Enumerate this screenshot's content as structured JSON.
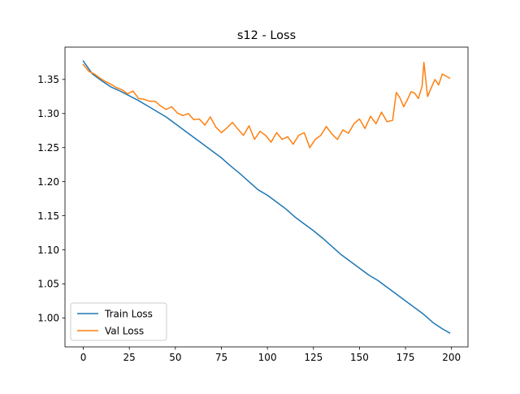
{
  "chart_data": {
    "type": "line",
    "title": "s12 - Loss",
    "xlabel": "",
    "ylabel": "",
    "xlim": [
      -9.95,
      208.95
    ],
    "ylim": [
      0.9575,
      1.3975
    ],
    "x_ticks": [
      0,
      25,
      50,
      75,
      100,
      125,
      150,
      175,
      200
    ],
    "y_ticks": [
      1.0,
      1.05,
      1.1,
      1.15,
      1.2,
      1.25,
      1.3,
      1.35
    ],
    "grid": false,
    "legend_position": "lower left",
    "series": [
      {
        "name": "Train Loss",
        "color": "#1f77b4",
        "x": [
          0,
          5,
          10,
          15,
          20,
          25,
          30,
          35,
          40,
          45,
          50,
          55,
          60,
          65,
          70,
          75,
          80,
          85,
          90,
          95,
          100,
          105,
          110,
          115,
          120,
          125,
          130,
          135,
          140,
          145,
          150,
          155,
          160,
          165,
          170,
          175,
          180,
          185,
          190,
          195,
          199
        ],
        "y": [
          1.377,
          1.358,
          1.348,
          1.339,
          1.333,
          1.326,
          1.319,
          1.311,
          1.303,
          1.295,
          1.285,
          1.275,
          1.265,
          1.255,
          1.245,
          1.235,
          1.223,
          1.212,
          1.2,
          1.188,
          1.18,
          1.17,
          1.16,
          1.148,
          1.138,
          1.128,
          1.117,
          1.105,
          1.093,
          1.083,
          1.073,
          1.063,
          1.055,
          1.045,
          1.035,
          1.025,
          1.015,
          1.005,
          0.993,
          0.984,
          0.978
        ]
      },
      {
        "name": "Val Loss",
        "color": "#ff7f0e",
        "x": [
          0,
          3,
          6,
          9,
          12,
          15,
          18,
          21,
          24,
          27,
          30,
          33,
          36,
          39,
          42,
          45,
          48,
          51,
          54,
          57,
          60,
          63,
          66,
          69,
          72,
          75,
          78,
          81,
          84,
          87,
          90,
          93,
          96,
          99,
          102,
          105,
          108,
          111,
          114,
          117,
          120,
          123,
          126,
          129,
          132,
          135,
          138,
          141,
          144,
          147,
          150,
          153,
          156,
          159,
          162,
          165,
          168,
          170,
          172,
          174,
          176,
          178,
          180,
          182,
          184,
          185,
          187,
          189,
          191,
          193,
          195,
          197,
          199
        ],
        "y": [
          1.372,
          1.362,
          1.358,
          1.352,
          1.347,
          1.343,
          1.338,
          1.335,
          1.329,
          1.333,
          1.322,
          1.321,
          1.318,
          1.318,
          1.311,
          1.306,
          1.31,
          1.301,
          1.297,
          1.3,
          1.291,
          1.292,
          1.283,
          1.295,
          1.28,
          1.272,
          1.279,
          1.287,
          1.277,
          1.268,
          1.282,
          1.262,
          1.274,
          1.268,
          1.258,
          1.272,
          1.262,
          1.266,
          1.255,
          1.268,
          1.272,
          1.25,
          1.262,
          1.268,
          1.281,
          1.27,
          1.262,
          1.276,
          1.271,
          1.285,
          1.292,
          1.278,
          1.296,
          1.285,
          1.302,
          1.288,
          1.29,
          1.331,
          1.323,
          1.31,
          1.32,
          1.332,
          1.33,
          1.322,
          1.34,
          1.375,
          1.325,
          1.338,
          1.35,
          1.342,
          1.358,
          1.355,
          1.352
        ]
      }
    ]
  }
}
